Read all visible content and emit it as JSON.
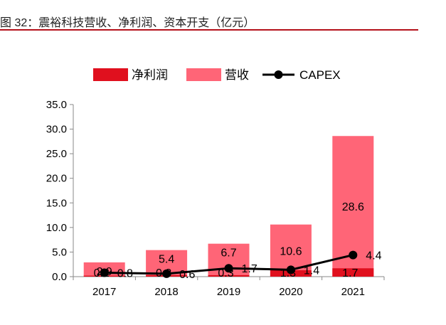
{
  "header": {
    "title": "图 32：震裕科技营收、净利润、资本开支（亿元）"
  },
  "chart_data": {
    "type": "bar",
    "title": "图 32：震裕科技营收、净利润、资本开支（亿元）",
    "categories": [
      "2017",
      "2018",
      "2019",
      "2020",
      "2021"
    ],
    "ylim": [
      0,
      35
    ],
    "yticks": [
      "0.0",
      "5.0",
      "10.0",
      "15.0",
      "20.0",
      "25.0",
      "30.0",
      "35.0"
    ],
    "grid": false,
    "legend_position": "top",
    "series": [
      {
        "name": "净利润",
        "kind": "bar",
        "color": "#e0101e",
        "values": [
          0.2,
          0.3,
          0.3,
          1.3,
          1.7
        ],
        "labels": [
          "0.2",
          "0.3",
          "0.3",
          "1.3",
          "1.7"
        ]
      },
      {
        "name": "营收",
        "kind": "bar",
        "color": "#ff6577",
        "values": [
          2.9,
          5.4,
          6.7,
          10.6,
          28.6
        ],
        "labels": [
          "2.9",
          "5.4",
          "6.7",
          "10.6",
          "28.6"
        ]
      },
      {
        "name": "CAPEX",
        "kind": "line",
        "color": "#000000",
        "values": [
          0.8,
          0.6,
          1.7,
          1.4,
          4.4
        ],
        "labels": [
          "0.8",
          "0.6",
          "1.7",
          "1.4",
          "4.4"
        ]
      }
    ]
  }
}
